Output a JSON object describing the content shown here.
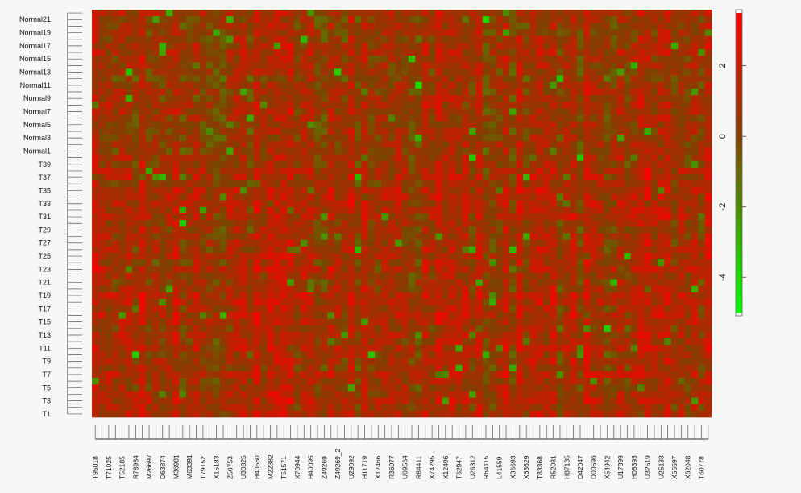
{
  "chart_data": {
    "type": "heatmap",
    "colorscale": {
      "low": "#00ff00",
      "mid": "#804000",
      "high": "#ff0000",
      "min": -5,
      "max": 3.5
    },
    "colorbar_ticks": [
      "2",
      "0",
      "-2",
      "-4"
    ],
    "colorbar_values": [
      2,
      0,
      -2,
      -4
    ],
    "row_labels": [
      "Normal21",
      "Normal19",
      "Normal17",
      "Normal15",
      "Normal13",
      "Normal11",
      "Normal9",
      "Normal7",
      "Normal5",
      "Normal3",
      "Normal1",
      "T39",
      "T37",
      "T35",
      "T33",
      "T31",
      "T29",
      "T27",
      "T25",
      "T23",
      "T21",
      "T19",
      "T17",
      "T15",
      "T13",
      "T11",
      "T9",
      "T7",
      "T5",
      "T3",
      "T1"
    ],
    "n_rows": 62,
    "col_labels": [
      "T95018",
      "T71025",
      "T52185",
      "R78934",
      "M26697",
      "D63874",
      "M36981",
      "M63391",
      "T79152",
      "X15183",
      "Z50753",
      "U30825",
      "H40560",
      "M22382",
      "T51571",
      "X70944",
      "H40095",
      "Z49269",
      "Z49269_2",
      "U29092",
      "H11719",
      "X12466",
      "R36977",
      "U09564",
      "R84411",
      "X74295",
      "X12496",
      "T62947",
      "U26312",
      "R64115",
      "L41559",
      "X86693",
      "X63629",
      "T83368",
      "R52081",
      "H87135",
      "D42047",
      "D00596",
      "X54942",
      "U17899",
      "H06393",
      "U32519",
      "U25138",
      "X56597",
      "X62048",
      "T60778"
    ],
    "n_cols": 92,
    "values_note": "sampled cell values in the range -5 to 3.5"
  }
}
